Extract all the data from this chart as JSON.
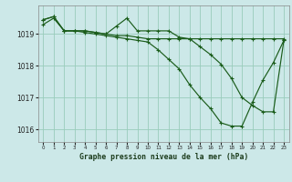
{
  "xlabel": "Graphe pression niveau de la mer (hPa)",
  "ylim": [
    1015.6,
    1019.9
  ],
  "xlim": [
    -0.5,
    23.5
  ],
  "yticks": [
    1016,
    1017,
    1018,
    1019
  ],
  "xticks": [
    0,
    1,
    2,
    3,
    4,
    5,
    6,
    7,
    8,
    9,
    10,
    11,
    12,
    13,
    14,
    15,
    16,
    17,
    18,
    19,
    20,
    21,
    22,
    23
  ],
  "background_color": "#cce8e8",
  "grid_color": "#99ccbb",
  "line_color": "#1a5c1a",
  "series1_x": [
    0,
    1,
    2,
    3,
    4,
    5,
    6,
    7,
    8,
    9,
    10,
    11,
    12,
    13,
    14,
    15,
    16,
    17,
    18,
    19,
    20,
    21,
    22,
    23
  ],
  "series1_y": [
    1019.3,
    1019.5,
    1019.1,
    1019.1,
    1019.1,
    1019.05,
    1019.0,
    1018.95,
    1018.95,
    1018.9,
    1018.85,
    1018.85,
    1018.85,
    1018.85,
    1018.85,
    1018.85,
    1018.85,
    1018.85,
    1018.85,
    1018.85,
    1018.85,
    1018.85,
    1018.85,
    1018.85
  ],
  "series2_x": [
    0,
    1,
    2,
    3,
    4,
    5,
    6,
    7,
    8,
    9,
    10,
    11,
    12,
    13,
    14,
    15,
    16,
    17,
    18,
    19,
    20,
    21,
    22,
    23
  ],
  "series2_y": [
    1019.45,
    1019.55,
    1019.1,
    1019.1,
    1019.1,
    1019.05,
    1019.0,
    1019.25,
    1019.5,
    1019.1,
    1019.1,
    1019.1,
    1019.1,
    1018.9,
    1018.85,
    1018.6,
    1018.35,
    1018.05,
    1017.6,
    1017.0,
    1016.75,
    1016.55,
    1016.55,
    1018.8
  ],
  "series3_x": [
    0,
    1,
    2,
    3,
    4,
    5,
    6,
    7,
    8,
    9,
    10,
    11,
    12,
    13,
    14,
    15,
    16,
    17,
    18,
    19,
    20,
    21,
    22,
    23
  ],
  "series3_y": [
    1019.45,
    1019.55,
    1019.1,
    1019.1,
    1019.05,
    1019.0,
    1018.95,
    1018.9,
    1018.85,
    1018.8,
    1018.75,
    1018.5,
    1018.2,
    1017.9,
    1017.4,
    1017.0,
    1016.65,
    1016.2,
    1016.1,
    1016.1,
    1016.85,
    1017.55,
    1018.1,
    1018.8
  ]
}
